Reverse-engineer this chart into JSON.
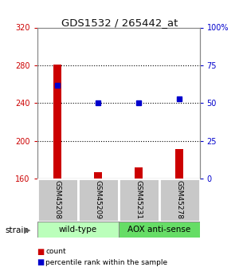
{
  "title": "GDS1532 / 265442_at",
  "samples": [
    "GSM45208",
    "GSM45209",
    "GSM45231",
    "GSM45278"
  ],
  "counts": [
    281,
    167,
    172,
    191
  ],
  "percentiles": [
    62,
    50,
    50,
    53
  ],
  "ylim_left": [
    160,
    320
  ],
  "ylim_right": [
    0,
    100
  ],
  "yticks_left": [
    160,
    200,
    240,
    280,
    320
  ],
  "yticks_right": [
    0,
    25,
    50,
    75,
    100
  ],
  "bar_color": "#cc0000",
  "dot_color": "#0000cc",
  "bar_width": 0.18,
  "groups": [
    {
      "label": "wild-type",
      "samples_idx": [
        0,
        1
      ],
      "color": "#bbffbb"
    },
    {
      "label": "AOX anti-sense",
      "samples_idx": [
        2,
        3
      ],
      "color": "#66dd66"
    }
  ],
  "strain_label": "strain",
  "legend_count_label": "count",
  "legend_pct_label": "percentile rank within the sample",
  "bg_color": "#ffffff",
  "plot_bg": "#ffffff",
  "left_tick_color": "#cc0000",
  "right_tick_color": "#0000cc",
  "grid_yticks": [
    200,
    240,
    280
  ],
  "label_box_color": "#c8c8c8",
  "label_box_edge": "#ffffff"
}
